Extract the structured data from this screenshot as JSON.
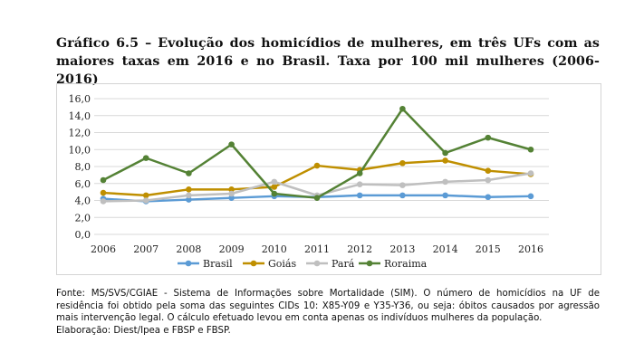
{
  "title": "Gráfico 6.5 – Evolução dos homicídios de mulheres, em três UFs com as maiores taxas em 2016 e no Brasil. Taxa por 100 mil mulheres (2006-2016)",
  "chart_data": {
    "type": "line",
    "title": "",
    "xlabel": "",
    "ylabel": "",
    "x": [
      "2006",
      "2007",
      "2008",
      "2009",
      "2010",
      "2011",
      "2012",
      "2013",
      "2014",
      "2015",
      "2016"
    ],
    "ylim": [
      0,
      16
    ],
    "yticks": [
      "0,0",
      "2,0",
      "4,0",
      "6,0",
      "8,0",
      "10,0",
      "12,0",
      "14,0",
      "16,0"
    ],
    "grid": true,
    "legend": "bottom",
    "series": [
      {
        "name": "Brasil",
        "color": "#5b9bd5",
        "values": [
          4.2,
          3.9,
          4.1,
          4.3,
          4.5,
          4.4,
          4.6,
          4.6,
          4.6,
          4.4,
          4.5
        ]
      },
      {
        "name": "Goiás",
        "color": "#bf8f00",
        "values": [
          4.9,
          4.6,
          5.3,
          5.3,
          5.6,
          8.1,
          7.6,
          8.4,
          8.7,
          7.5,
          7.1
        ]
      },
      {
        "name": "Pará",
        "color": "#bfbfbf",
        "values": [
          3.9,
          4.0,
          4.6,
          4.8,
          6.2,
          4.6,
          5.9,
          5.8,
          6.2,
          6.4,
          7.2
        ]
      },
      {
        "name": "Roraima",
        "color": "#548235",
        "values": [
          6.4,
          9.0,
          7.2,
          10.6,
          4.8,
          4.3,
          7.2,
          14.8,
          9.6,
          11.4,
          10.0
        ]
      }
    ]
  },
  "footer": {
    "source": "Fonte: MS/SVS/CGIAE - Sistema de Informações sobre Mortalidade (SIM). O número de homicídios na UF de residência foi obtido pela soma das seguintes CIDs 10: X85-Y09 e Y35-Y36, ou seja: óbitos causados por agressão mais intervenção legal. O cálculo efetuado levou em conta apenas os indivíduos mulheres da população.",
    "elaboration": "Elaboração: Diest/Ipea e FBSP e FBSP."
  }
}
